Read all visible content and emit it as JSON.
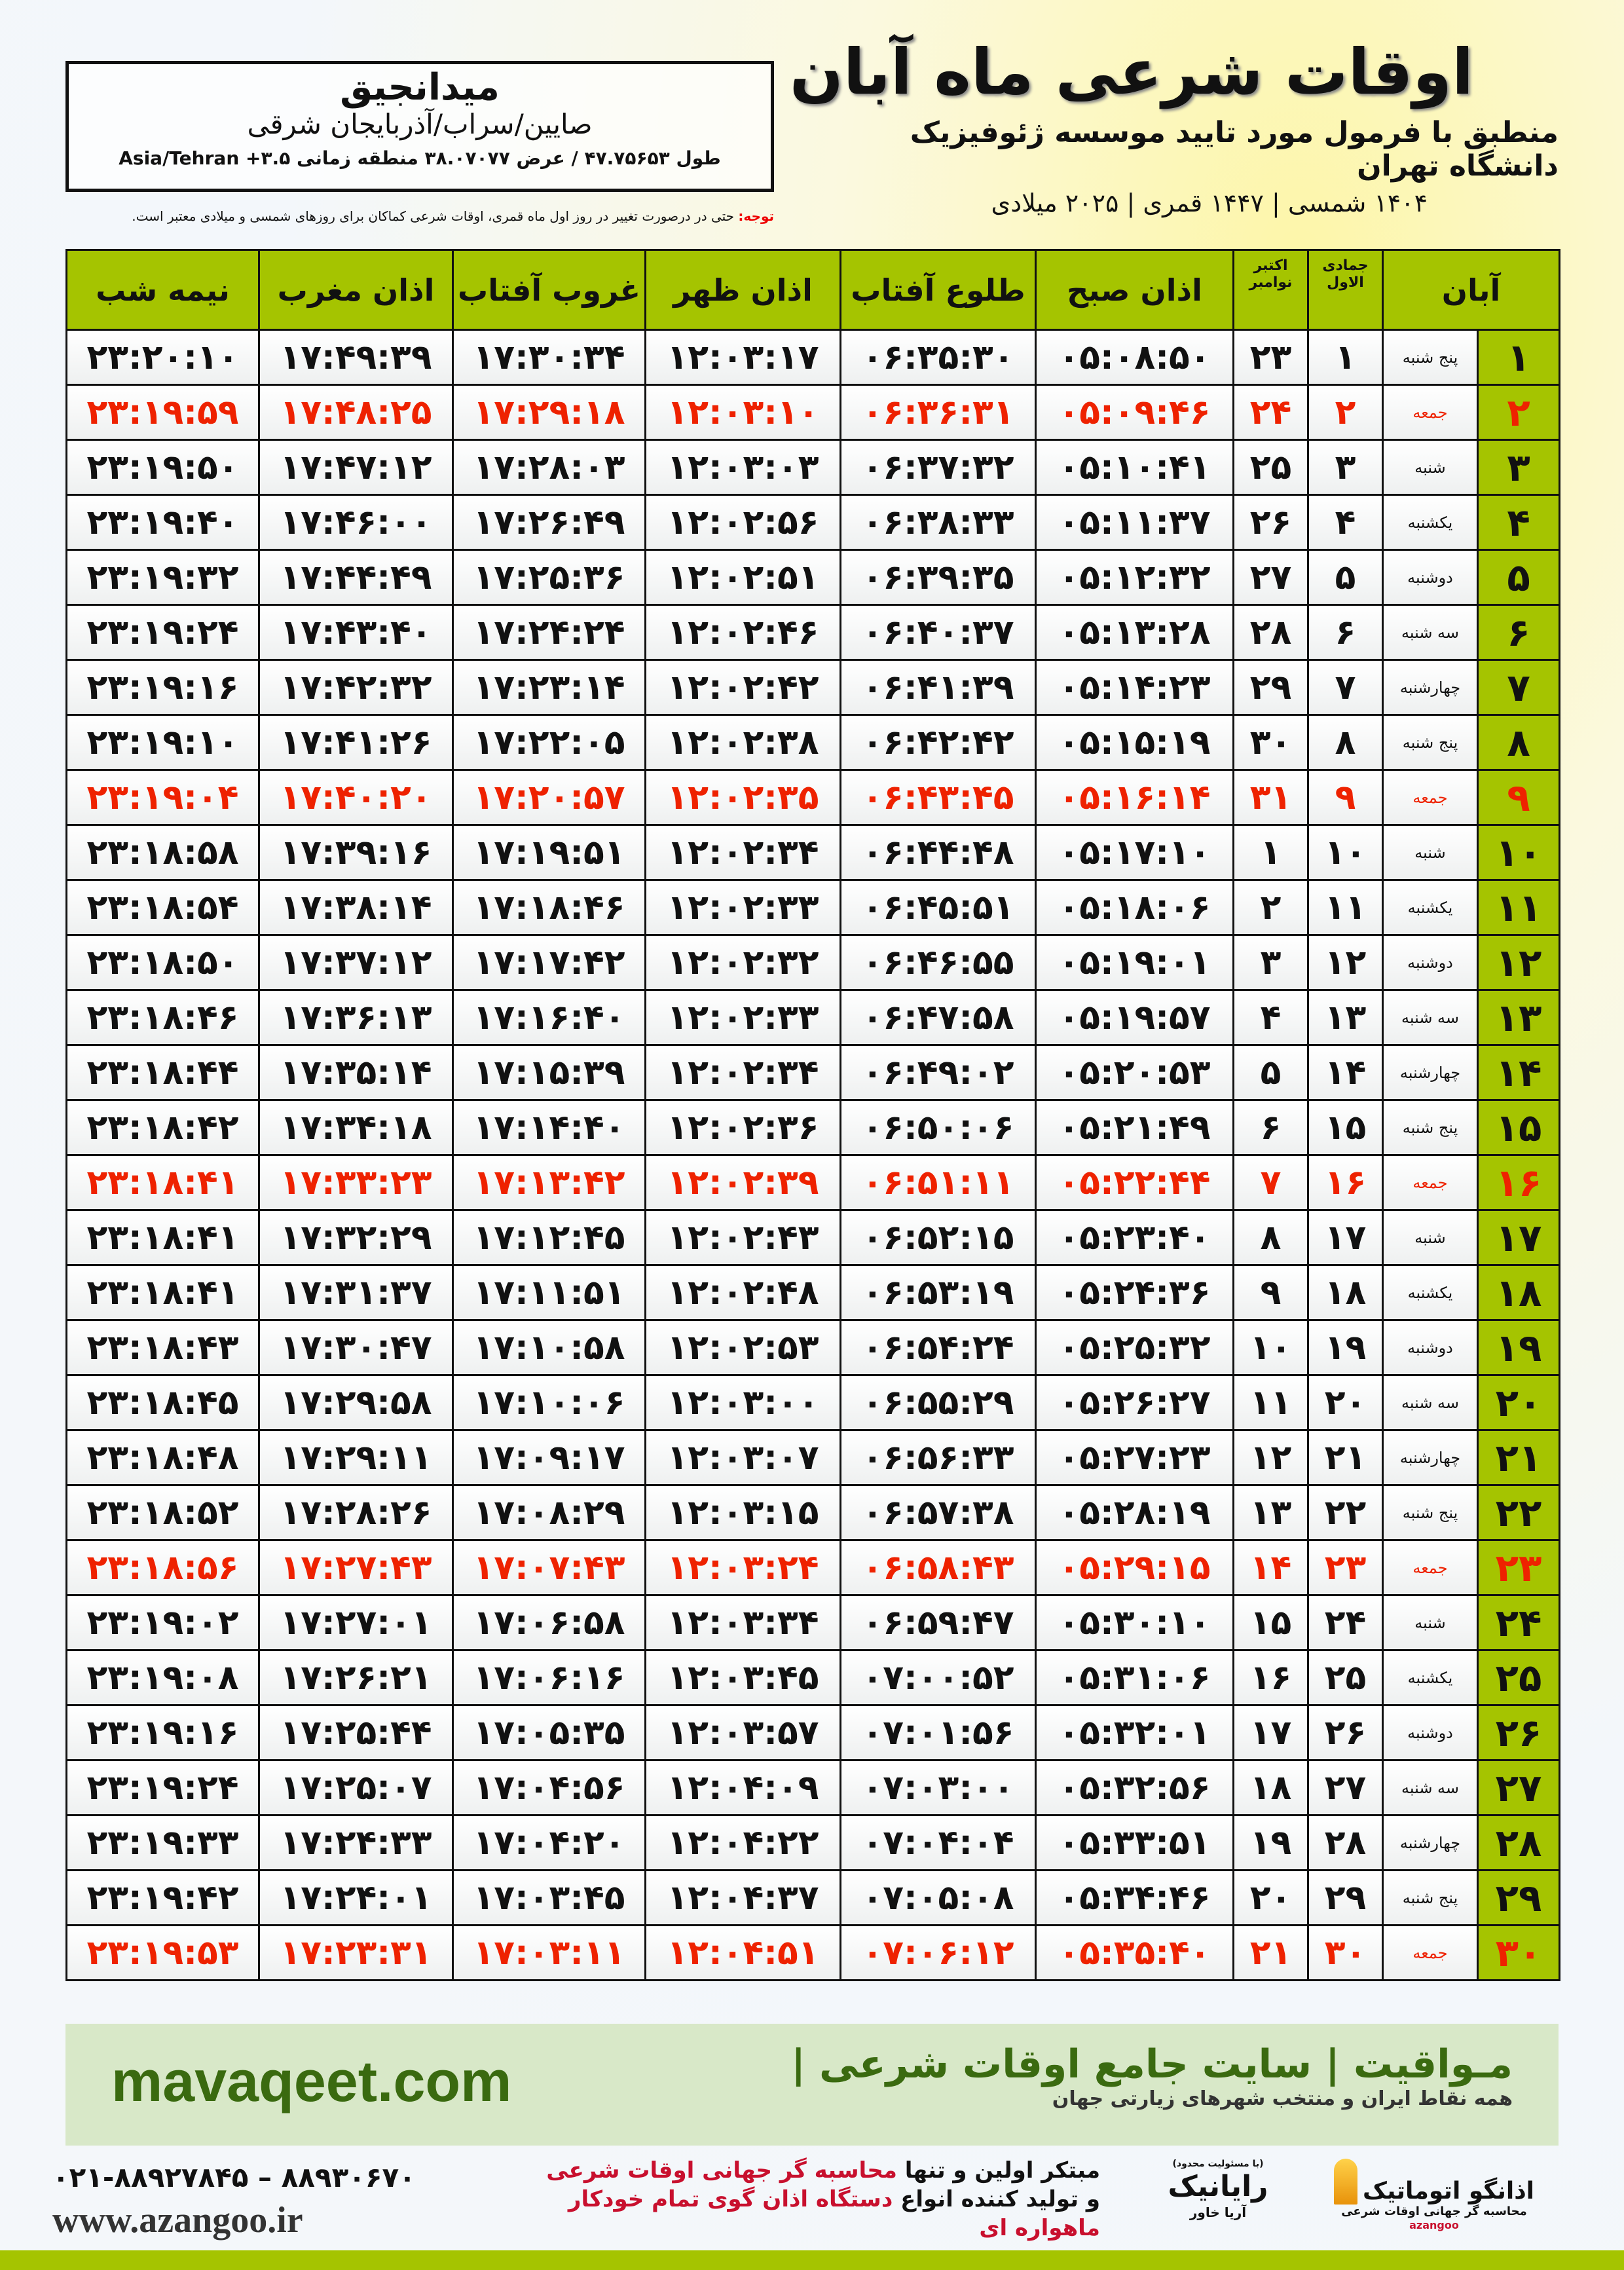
{
  "header": {
    "title": "اوقات شرعی ماه آبان",
    "subtitle": "منطبق با فرمول مورد تایید موسسه ژئوفیزیک دانشگاه تهران",
    "dates": "۱۴۰۴ شمسی | ۱۴۴۷ قمری | ۲۰۲۵ میلادی"
  },
  "location": {
    "name": "میدانجیق",
    "path": "صایین/سراب/آذربایجان شرقی",
    "coords": "طول ۴۷.۷۵۶۵۳ / عرض ۳۸.۰۷۰۷۷ منطقه زمانی ۳.۵+ Asia/Tehran"
  },
  "note": {
    "label": "توجه:",
    "text": " حتی در درصورت تغییر در روز اول ماه قمری، اوقات شرعی کماکان برای روزهای شمسی و میلادی معتبر است."
  },
  "columns": {
    "aban": "آبان",
    "qamari": "جمادی الاول",
    "gregorian": "اکتبر نوامبر",
    "fajr": "اذان صبح",
    "sunrise": "طلوع آفتاب",
    "dhuhr": "اذان ظهر",
    "sunset": "غروب آفتاب",
    "maghrib": "اذان مغرب",
    "midnight": "نیمه شب"
  },
  "colors": {
    "header_green": "#a5c400",
    "friday_red": "#e20000",
    "footer_green": "#3a6a10"
  },
  "rows": [
    [
      "۱",
      "پنج شنبه",
      "۱",
      "۲۳",
      "۰۵:۰۸:۵۰",
      "۰۶:۳۵:۳۰",
      "۱۲:۰۳:۱۷",
      "۱۷:۳۰:۳۴",
      "۱۷:۴۹:۳۹",
      "۲۳:۲۰:۱۰"
    ],
    [
      "۲",
      "جمعه",
      "۲",
      "۲۴",
      "۰۵:۰۹:۴۶",
      "۰۶:۳۶:۳۱",
      "۱۲:۰۳:۱۰",
      "۱۷:۲۹:۱۸",
      "۱۷:۴۸:۲۵",
      "۲۳:۱۹:۵۹"
    ],
    [
      "۳",
      "شنبه",
      "۳",
      "۲۵",
      "۰۵:۱۰:۴۱",
      "۰۶:۳۷:۳۲",
      "۱۲:۰۳:۰۳",
      "۱۷:۲۸:۰۳",
      "۱۷:۴۷:۱۲",
      "۲۳:۱۹:۵۰"
    ],
    [
      "۴",
      "یکشنبه",
      "۴",
      "۲۶",
      "۰۵:۱۱:۳۷",
      "۰۶:۳۸:۳۳",
      "۱۲:۰۲:۵۶",
      "۱۷:۲۶:۴۹",
      "۱۷:۴۶:۰۰",
      "۲۳:۱۹:۴۰"
    ],
    [
      "۵",
      "دوشنبه",
      "۵",
      "۲۷",
      "۰۵:۱۲:۳۲",
      "۰۶:۳۹:۳۵",
      "۱۲:۰۲:۵۱",
      "۱۷:۲۵:۳۶",
      "۱۷:۴۴:۴۹",
      "۲۳:۱۹:۳۲"
    ],
    [
      "۶",
      "سه شنبه",
      "۶",
      "۲۸",
      "۰۵:۱۳:۲۸",
      "۰۶:۴۰:۳۷",
      "۱۲:۰۲:۴۶",
      "۱۷:۲۴:۲۴",
      "۱۷:۴۳:۴۰",
      "۲۳:۱۹:۲۴"
    ],
    [
      "۷",
      "چهارشنبه",
      "۷",
      "۲۹",
      "۰۵:۱۴:۲۳",
      "۰۶:۴۱:۳۹",
      "۱۲:۰۲:۴۲",
      "۱۷:۲۳:۱۴",
      "۱۷:۴۲:۳۲",
      "۲۳:۱۹:۱۶"
    ],
    [
      "۸",
      "پنج شنبه",
      "۸",
      "۳۰",
      "۰۵:۱۵:۱۹",
      "۰۶:۴۲:۴۲",
      "۱۲:۰۲:۳۸",
      "۱۷:۲۲:۰۵",
      "۱۷:۴۱:۲۶",
      "۲۳:۱۹:۱۰"
    ],
    [
      "۹",
      "جمعه",
      "۹",
      "۳۱",
      "۰۵:۱۶:۱۴",
      "۰۶:۴۳:۴۵",
      "۱۲:۰۲:۳۵",
      "۱۷:۲۰:۵۷",
      "۱۷:۴۰:۲۰",
      "۲۳:۱۹:۰۴"
    ],
    [
      "۱۰",
      "شنبه",
      "۱۰",
      "۱",
      "۰۵:۱۷:۱۰",
      "۰۶:۴۴:۴۸",
      "۱۲:۰۲:۳۴",
      "۱۷:۱۹:۵۱",
      "۱۷:۳۹:۱۶",
      "۲۳:۱۸:۵۸"
    ],
    [
      "۱۱",
      "یکشنبه",
      "۱۱",
      "۲",
      "۰۵:۱۸:۰۶",
      "۰۶:۴۵:۵۱",
      "۱۲:۰۲:۳۳",
      "۱۷:۱۸:۴۶",
      "۱۷:۳۸:۱۴",
      "۲۳:۱۸:۵۴"
    ],
    [
      "۱۲",
      "دوشنبه",
      "۱۲",
      "۳",
      "۰۵:۱۹:۰۱",
      "۰۶:۴۶:۵۵",
      "۱۲:۰۲:۳۲",
      "۱۷:۱۷:۴۲",
      "۱۷:۳۷:۱۲",
      "۲۳:۱۸:۵۰"
    ],
    [
      "۱۳",
      "سه شنبه",
      "۱۳",
      "۴",
      "۰۵:۱۹:۵۷",
      "۰۶:۴۷:۵۸",
      "۱۲:۰۲:۳۳",
      "۱۷:۱۶:۴۰",
      "۱۷:۳۶:۱۳",
      "۲۳:۱۸:۴۶"
    ],
    [
      "۱۴",
      "چهارشنبه",
      "۱۴",
      "۵",
      "۰۵:۲۰:۵۳",
      "۰۶:۴۹:۰۲",
      "۱۲:۰۲:۳۴",
      "۱۷:۱۵:۳۹",
      "۱۷:۳۵:۱۴",
      "۲۳:۱۸:۴۴"
    ],
    [
      "۱۵",
      "پنج شنبه",
      "۱۵",
      "۶",
      "۰۵:۲۱:۴۹",
      "۰۶:۵۰:۰۶",
      "۱۲:۰۲:۳۶",
      "۱۷:۱۴:۴۰",
      "۱۷:۳۴:۱۸",
      "۲۳:۱۸:۴۲"
    ],
    [
      "۱۶",
      "جمعه",
      "۱۶",
      "۷",
      "۰۵:۲۲:۴۴",
      "۰۶:۵۱:۱۱",
      "۱۲:۰۲:۳۹",
      "۱۷:۱۳:۴۲",
      "۱۷:۳۳:۲۳",
      "۲۳:۱۸:۴۱"
    ],
    [
      "۱۷",
      "شنبه",
      "۱۷",
      "۸",
      "۰۵:۲۳:۴۰",
      "۰۶:۵۲:۱۵",
      "۱۲:۰۲:۴۳",
      "۱۷:۱۲:۴۵",
      "۱۷:۳۲:۲۹",
      "۲۳:۱۸:۴۱"
    ],
    [
      "۱۸",
      "یکشنبه",
      "۱۸",
      "۹",
      "۰۵:۲۴:۳۶",
      "۰۶:۵۳:۱۹",
      "۱۲:۰۲:۴۸",
      "۱۷:۱۱:۵۱",
      "۱۷:۳۱:۳۷",
      "۲۳:۱۸:۴۱"
    ],
    [
      "۱۹",
      "دوشنبه",
      "۱۹",
      "۱۰",
      "۰۵:۲۵:۳۲",
      "۰۶:۵۴:۲۴",
      "۱۲:۰۲:۵۳",
      "۱۷:۱۰:۵۸",
      "۱۷:۳۰:۴۷",
      "۲۳:۱۸:۴۳"
    ],
    [
      "۲۰",
      "سه شنبه",
      "۲۰",
      "۱۱",
      "۰۵:۲۶:۲۷",
      "۰۶:۵۵:۲۹",
      "۱۲:۰۳:۰۰",
      "۱۷:۱۰:۰۶",
      "۱۷:۲۹:۵۸",
      "۲۳:۱۸:۴۵"
    ],
    [
      "۲۱",
      "چهارشنبه",
      "۲۱",
      "۱۲",
      "۰۵:۲۷:۲۳",
      "۰۶:۵۶:۳۳",
      "۱۲:۰۳:۰۷",
      "۱۷:۰۹:۱۷",
      "۱۷:۲۹:۱۱",
      "۲۳:۱۸:۴۸"
    ],
    [
      "۲۲",
      "پنج شنبه",
      "۲۲",
      "۱۳",
      "۰۵:۲۸:۱۹",
      "۰۶:۵۷:۳۸",
      "۱۲:۰۳:۱۵",
      "۱۷:۰۸:۲۹",
      "۱۷:۲۸:۲۶",
      "۲۳:۱۸:۵۲"
    ],
    [
      "۲۳",
      "جمعه",
      "۲۳",
      "۱۴",
      "۰۵:۲۹:۱۵",
      "۰۶:۵۸:۴۳",
      "۱۲:۰۳:۲۴",
      "۱۷:۰۷:۴۳",
      "۱۷:۲۷:۴۳",
      "۲۳:۱۸:۵۶"
    ],
    [
      "۲۴",
      "شنبه",
      "۲۴",
      "۱۵",
      "۰۵:۳۰:۱۰",
      "۰۶:۵۹:۴۷",
      "۱۲:۰۳:۳۴",
      "۱۷:۰۶:۵۸",
      "۱۷:۲۷:۰۱",
      "۲۳:۱۹:۰۲"
    ],
    [
      "۲۵",
      "یکشنبه",
      "۲۵",
      "۱۶",
      "۰۵:۳۱:۰۶",
      "۰۷:۰۰:۵۲",
      "۱۲:۰۳:۴۵",
      "۱۷:۰۶:۱۶",
      "۱۷:۲۶:۲۱",
      "۲۳:۱۹:۰۸"
    ],
    [
      "۲۶",
      "دوشنبه",
      "۲۶",
      "۱۷",
      "۰۵:۳۲:۰۱",
      "۰۷:۰۱:۵۶",
      "۱۲:۰۳:۵۷",
      "۱۷:۰۵:۳۵",
      "۱۷:۲۵:۴۴",
      "۲۳:۱۹:۱۶"
    ],
    [
      "۲۷",
      "سه شنبه",
      "۲۷",
      "۱۸",
      "۰۵:۳۲:۵۶",
      "۰۷:۰۳:۰۰",
      "۱۲:۰۴:۰۹",
      "۱۷:۰۴:۵۶",
      "۱۷:۲۵:۰۷",
      "۲۳:۱۹:۲۴"
    ],
    [
      "۲۸",
      "چهارشنبه",
      "۲۸",
      "۱۹",
      "۰۵:۳۳:۵۱",
      "۰۷:۰۴:۰۴",
      "۱۲:۰۴:۲۲",
      "۱۷:۰۴:۲۰",
      "۱۷:۲۴:۳۳",
      "۲۳:۱۹:۳۳"
    ],
    [
      "۲۹",
      "پنج شنبه",
      "۲۹",
      "۲۰",
      "۰۵:۳۴:۴۶",
      "۰۷:۰۵:۰۸",
      "۱۲:۰۴:۳۷",
      "۱۷:۰۳:۴۵",
      "۱۷:۲۴:۰۱",
      "۲۳:۱۹:۴۲"
    ],
    [
      "۳۰",
      "جمعه",
      "۳۰",
      "۲۱",
      "۰۵:۳۵:۴۰",
      "۰۷:۰۶:۱۲",
      "۱۲:۰۴:۵۱",
      "۱۷:۰۳:۱۱",
      "۱۷:۲۳:۳۱",
      "۲۳:۱۹:۵۳"
    ]
  ],
  "footer": {
    "url": "mavaqeet.com",
    "brand": "مـواقیت",
    "slogan": "| سایت جامع اوقات شرعی |",
    "slogan_small": "همه نقاط ایران و منتخب شهرهای زیارتی جهان",
    "phone": "۰۲۱-۸۸۹۲۷۸۴۵ – ۸۸۹۳۰۶۷۰",
    "site": "www.azangoo.ir",
    "promo1a": "مبتکر اولین و تنها ",
    "promo1b": "محاسبه گر جهانی اوقات شرعی",
    "promo2a": "و تولید کننده انواع ",
    "promo2b": "دستگاه اذان گوی تمام خودکار ماهواره ای",
    "logo1": "اذانگو اتوماتیک",
    "logo1_sub": "محاسبه گر جهانی اوقات شرعی",
    "logo1_en": "azangoo",
    "logo2": "رایانیک",
    "logo2_sub": "آریا خاور",
    "logo2_note": "(با مسئولیت محدود)"
  }
}
